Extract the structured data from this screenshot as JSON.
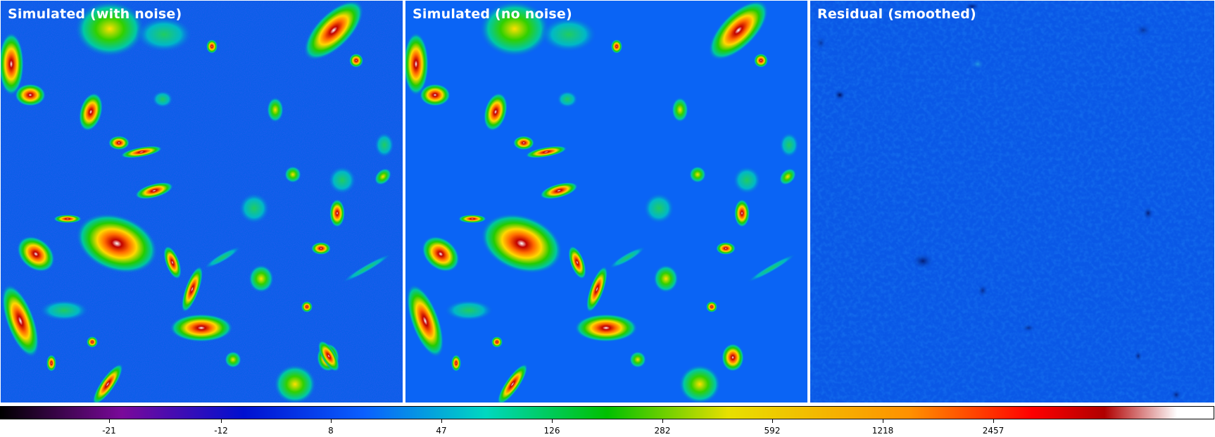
{
  "panels": [
    {
      "title": "Simulated (with noise)"
    },
    {
      "title": "Simulated (no noise)"
    },
    {
      "title": "Residual (smoothed)"
    }
  ],
  "colorbar": {
    "ticks": [
      "-21",
      "-12",
      "8",
      "47",
      "126",
      "282",
      "592",
      "1218",
      "2457"
    ],
    "colors": [
      "#000000",
      "#7a0a9a",
      "#0010d0",
      "#0a60ff",
      "#00d8c0",
      "#00c000",
      "#e8e000",
      "#ff9000",
      "#ff0000",
      "#b00000",
      "#ffffff"
    ]
  }
}
